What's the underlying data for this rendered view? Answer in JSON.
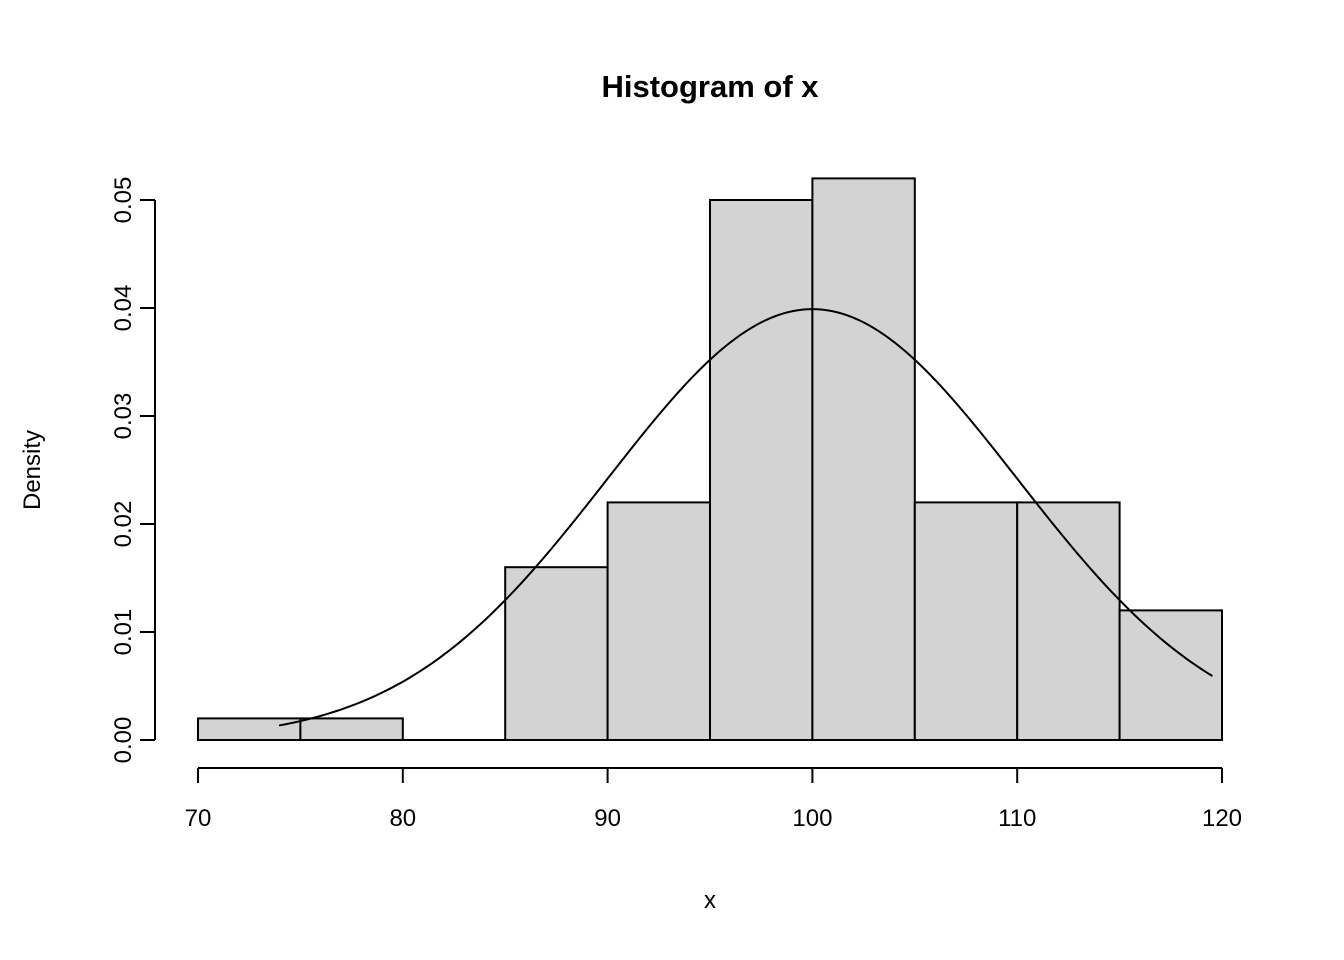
{
  "chart_data": {
    "type": "bar",
    "subtype": "histogram-with-density-curve",
    "title": "Histogram of x",
    "xlabel": "x",
    "ylabel": "Density",
    "xlim": [
      70,
      120
    ],
    "ylim": [
      0,
      0.05
    ],
    "x_ticks": [
      70,
      80,
      90,
      100,
      110,
      120
    ],
    "y_ticks": [
      0.0,
      0.01,
      0.02,
      0.03,
      0.04,
      0.05
    ],
    "y_tick_labels": [
      "0.00",
      "0.01",
      "0.02",
      "0.03",
      "0.04",
      "0.05"
    ],
    "bin_width": 5,
    "bins": [
      {
        "start": 70,
        "end": 75,
        "density": 0.002
      },
      {
        "start": 75,
        "end": 80,
        "density": 0.002
      },
      {
        "start": 80,
        "end": 85,
        "density": 0.0
      },
      {
        "start": 85,
        "end": 90,
        "density": 0.016
      },
      {
        "start": 90,
        "end": 95,
        "density": 0.022
      },
      {
        "start": 95,
        "end": 100,
        "density": 0.05
      },
      {
        "start": 100,
        "end": 105,
        "density": 0.052
      },
      {
        "start": 105,
        "end": 110,
        "density": 0.022
      },
      {
        "start": 110,
        "end": 115,
        "density": 0.022
      },
      {
        "start": 115,
        "end": 120,
        "density": 0.012
      }
    ],
    "curve": {
      "kind": "normal-density",
      "mean": 100,
      "sd": 10,
      "peak_density": 0.04,
      "x_start": 74,
      "x_end": 119.6
    },
    "grid": false,
    "legend": false,
    "bar_fill": "#d3d3d3",
    "bar_stroke": "#000000",
    "curve_color": "#000000",
    "axis_color": "#000000",
    "background": "#ffffff"
  }
}
